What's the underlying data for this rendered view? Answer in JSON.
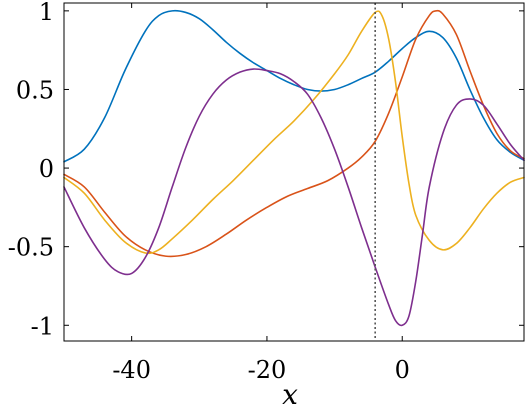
{
  "chart_data": {
    "type": "line",
    "title": "",
    "xlabel": "x",
    "ylabel": "",
    "xlim": [
      -50,
      18
    ],
    "ylim": [
      -1.1,
      1.05
    ],
    "xticks": [
      -40,
      -20,
      0
    ],
    "xtick_labels": [
      "-40",
      "-20",
      "0"
    ],
    "yticks": [
      1,
      0.5,
      0,
      -0.5,
      -1
    ],
    "ytick_labels": [
      "1",
      "0.5",
      "0",
      "-0.5",
      "-1"
    ],
    "grid": false,
    "legend": "none",
    "vertical_line": {
      "x": -4,
      "style": "dotted",
      "color": "#555555"
    },
    "series": [
      {
        "color": "#0072BD",
        "points": [
          [
            -50,
            0.04
          ],
          [
            -47,
            0.12
          ],
          [
            -44,
            0.32
          ],
          [
            -41,
            0.62
          ],
          [
            -38,
            0.87
          ],
          [
            -36,
            0.97
          ],
          [
            -34,
            1.0
          ],
          [
            -32,
            0.99
          ],
          [
            -30,
            0.95
          ],
          [
            -28,
            0.88
          ],
          [
            -26,
            0.8
          ],
          [
            -24,
            0.73
          ],
          [
            -22,
            0.67
          ],
          [
            -20,
            0.62
          ],
          [
            -18,
            0.57
          ],
          [
            -16,
            0.53
          ],
          [
            -14,
            0.5
          ],
          [
            -12,
            0.49
          ],
          [
            -10,
            0.5
          ],
          [
            -8,
            0.53
          ],
          [
            -6,
            0.57
          ],
          [
            -4,
            0.61
          ],
          [
            -2,
            0.68
          ],
          [
            0,
            0.76
          ],
          [
            2,
            0.83
          ],
          [
            4,
            0.87
          ],
          [
            6,
            0.83
          ],
          [
            8,
            0.7
          ],
          [
            10,
            0.5
          ],
          [
            12,
            0.32
          ],
          [
            14,
            0.18
          ],
          [
            16,
            0.1
          ],
          [
            18,
            0.05
          ]
        ]
      },
      {
        "color": "#D95319",
        "points": [
          [
            -50,
            -0.04
          ],
          [
            -47,
            -0.12
          ],
          [
            -44,
            -0.28
          ],
          [
            -41,
            -0.43
          ],
          [
            -38,
            -0.52
          ],
          [
            -35,
            -0.56
          ],
          [
            -32,
            -0.55
          ],
          [
            -29,
            -0.5
          ],
          [
            -26,
            -0.42
          ],
          [
            -23,
            -0.33
          ],
          [
            -20,
            -0.25
          ],
          [
            -17,
            -0.18
          ],
          [
            -14,
            -0.13
          ],
          [
            -11,
            -0.08
          ],
          [
            -8,
            0.0
          ],
          [
            -6,
            0.07
          ],
          [
            -4,
            0.17
          ],
          [
            -2,
            0.35
          ],
          [
            0,
            0.58
          ],
          [
            2,
            0.82
          ],
          [
            4,
            0.97
          ],
          [
            5,
            1.0
          ],
          [
            6,
            0.98
          ],
          [
            8,
            0.85
          ],
          [
            10,
            0.62
          ],
          [
            12,
            0.4
          ],
          [
            14,
            0.22
          ],
          [
            16,
            0.11
          ],
          [
            18,
            0.06
          ]
        ]
      },
      {
        "color": "#EDB120",
        "points": [
          [
            -50,
            -0.06
          ],
          [
            -47,
            -0.16
          ],
          [
            -44,
            -0.33
          ],
          [
            -41,
            -0.47
          ],
          [
            -38,
            -0.54
          ],
          [
            -36,
            -0.52
          ],
          [
            -34,
            -0.45
          ],
          [
            -31,
            -0.33
          ],
          [
            -28,
            -0.2
          ],
          [
            -25,
            -0.08
          ],
          [
            -22,
            0.05
          ],
          [
            -19,
            0.18
          ],
          [
            -16,
            0.3
          ],
          [
            -13,
            0.44
          ],
          [
            -10,
            0.6
          ],
          [
            -8,
            0.72
          ],
          [
            -6,
            0.87
          ],
          [
            -4,
            0.99
          ],
          [
            -3,
            0.97
          ],
          [
            -2,
            0.82
          ],
          [
            -1,
            0.55
          ],
          [
            0,
            0.2
          ],
          [
            1,
            -0.1
          ],
          [
            2,
            -0.3
          ],
          [
            4,
            -0.46
          ],
          [
            6,
            -0.52
          ],
          [
            8,
            -0.48
          ],
          [
            10,
            -0.38
          ],
          [
            12,
            -0.26
          ],
          [
            14,
            -0.16
          ],
          [
            16,
            -0.09
          ],
          [
            18,
            -0.06
          ]
        ]
      },
      {
        "color": "#7E2F8E",
        "points": [
          [
            -50,
            -0.12
          ],
          [
            -47,
            -0.38
          ],
          [
            -44,
            -0.58
          ],
          [
            -42,
            -0.66
          ],
          [
            -40,
            -0.67
          ],
          [
            -38,
            -0.57
          ],
          [
            -36,
            -0.38
          ],
          [
            -34,
            -0.12
          ],
          [
            -32,
            0.13
          ],
          [
            -30,
            0.33
          ],
          [
            -28,
            0.47
          ],
          [
            -26,
            0.56
          ],
          [
            -24,
            0.61
          ],
          [
            -22,
            0.63
          ],
          [
            -20,
            0.62
          ],
          [
            -18,
            0.6
          ],
          [
            -16,
            0.55
          ],
          [
            -14,
            0.47
          ],
          [
            -12,
            0.32
          ],
          [
            -10,
            0.12
          ],
          [
            -8,
            -0.12
          ],
          [
            -6,
            -0.38
          ],
          [
            -4,
            -0.63
          ],
          [
            -2,
            -0.87
          ],
          [
            -1,
            -0.97
          ],
          [
            0,
            -1.0
          ],
          [
            1,
            -0.94
          ],
          [
            2,
            -0.72
          ],
          [
            3,
            -0.42
          ],
          [
            4,
            -0.12
          ],
          [
            6,
            0.22
          ],
          [
            8,
            0.4
          ],
          [
            10,
            0.44
          ],
          [
            12,
            0.4
          ],
          [
            14,
            0.28
          ],
          [
            16,
            0.15
          ],
          [
            18,
            0.05
          ]
        ]
      }
    ]
  }
}
